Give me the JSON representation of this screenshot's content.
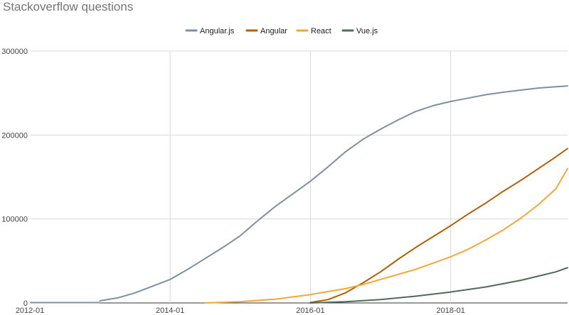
{
  "chart_data": {
    "type": "line",
    "title": "Stackoverflow questions",
    "xlabel": "",
    "ylabel": "",
    "x_range": [
      "2012-01",
      "2019-09"
    ],
    "ylim": [
      0,
      300000
    ],
    "y_ticks": [
      {
        "value": 0,
        "label": "0"
      },
      {
        "value": 100000,
        "label": "100000"
      },
      {
        "value": 200000,
        "label": "200000"
      },
      {
        "value": 300000,
        "label": "300000"
      }
    ],
    "x_ticks": [
      {
        "value": "2012-01",
        "label": "2012-01"
      },
      {
        "value": "2014-01",
        "label": "2014-01"
      },
      {
        "value": "2016-01",
        "label": "2016-01"
      },
      {
        "value": "2018-01",
        "label": "2018-01"
      }
    ],
    "grid": true,
    "legend_position": "top",
    "series": [
      {
        "name": "Angular.js",
        "color": "#7f8fa3",
        "points": [
          [
            "2013-01",
            2500
          ],
          [
            "2013-04",
            6000
          ],
          [
            "2013-07",
            12000
          ],
          [
            "2013-10",
            20000
          ],
          [
            "2014-01",
            28000
          ],
          [
            "2014-04",
            40000
          ],
          [
            "2014-07",
            53000
          ],
          [
            "2014-10",
            66000
          ],
          [
            "2015-01",
            80000
          ],
          [
            "2015-04",
            98000
          ],
          [
            "2015-07",
            115000
          ],
          [
            "2015-10",
            130000
          ],
          [
            "2016-01",
            145000
          ],
          [
            "2016-04",
            162000
          ],
          [
            "2016-07",
            180000
          ],
          [
            "2016-10",
            195000
          ],
          [
            "2017-01",
            207000
          ],
          [
            "2017-04",
            218000
          ],
          [
            "2017-07",
            228000
          ],
          [
            "2017-10",
            235000
          ],
          [
            "2018-01",
            240000
          ],
          [
            "2018-04",
            244000
          ],
          [
            "2018-07",
            248000
          ],
          [
            "2018-10",
            251000
          ],
          [
            "2019-01",
            253500
          ],
          [
            "2019-04",
            256000
          ],
          [
            "2019-07",
            257500
          ],
          [
            "2019-09",
            258500
          ]
        ]
      },
      {
        "name": "Angular",
        "color": "#b45f06",
        "points": [
          [
            "2016-01",
            500
          ],
          [
            "2016-04",
            4000
          ],
          [
            "2016-07",
            12000
          ],
          [
            "2016-10",
            24000
          ],
          [
            "2017-01",
            37000
          ],
          [
            "2017-04",
            52000
          ],
          [
            "2017-07",
            66000
          ],
          [
            "2017-10",
            79000
          ],
          [
            "2018-01",
            92000
          ],
          [
            "2018-04",
            106000
          ],
          [
            "2018-07",
            119000
          ],
          [
            "2018-10",
            133000
          ],
          [
            "2019-01",
            146000
          ],
          [
            "2019-04",
            160000
          ],
          [
            "2019-07",
            174000
          ],
          [
            "2019-09",
            184000
          ]
        ]
      },
      {
        "name": "React",
        "color": "#f6a637",
        "points": [
          [
            "2014-07",
            0
          ],
          [
            "2015-01",
            1500
          ],
          [
            "2015-07",
            4500
          ],
          [
            "2016-01",
            10000
          ],
          [
            "2016-07",
            17000
          ],
          [
            "2016-10",
            22000
          ],
          [
            "2017-01",
            28000
          ],
          [
            "2017-07",
            40000
          ],
          [
            "2018-01",
            55000
          ],
          [
            "2018-04",
            64000
          ],
          [
            "2018-07",
            75000
          ],
          [
            "2018-10",
            87000
          ],
          [
            "2019-01",
            101000
          ],
          [
            "2019-04",
            117000
          ],
          [
            "2019-07",
            136000
          ],
          [
            "2019-09",
            160000
          ]
        ]
      },
      {
        "name": "Vue.js",
        "color": "#4f6b59",
        "points": [
          [
            "2016-01",
            0
          ],
          [
            "2016-07",
            1500
          ],
          [
            "2017-01",
            4000
          ],
          [
            "2017-07",
            8000
          ],
          [
            "2018-01",
            13000
          ],
          [
            "2018-07",
            19000
          ],
          [
            "2019-01",
            27000
          ],
          [
            "2019-07",
            37000
          ],
          [
            "2019-09",
            42000
          ]
        ]
      }
    ]
  }
}
